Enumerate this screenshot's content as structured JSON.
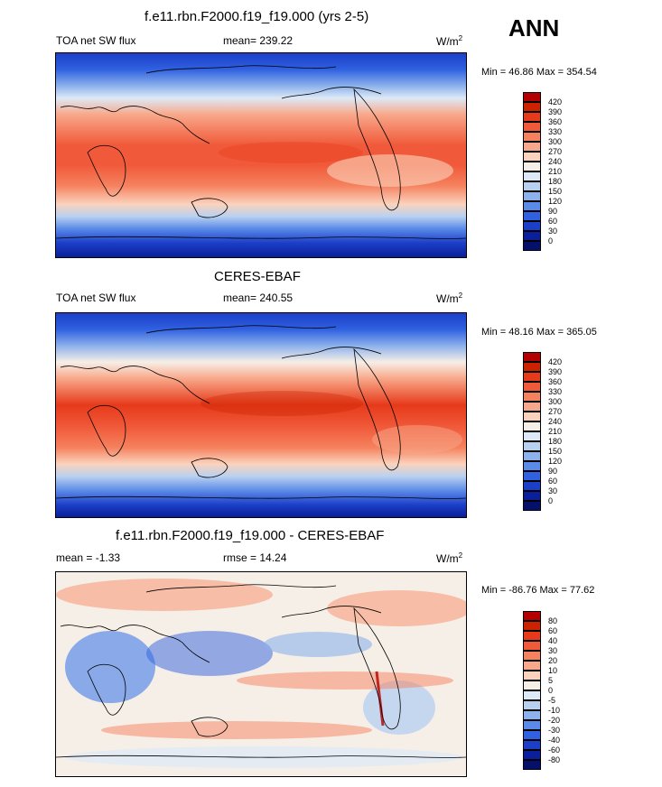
{
  "season": "ANN",
  "panels": [
    {
      "title": "f.e11.rbn.F2000.f19_f19.000 (yrs 2-5)",
      "left_label": "TOA net SW flux",
      "center_label": "mean= 239.22",
      "units": "W/m",
      "units_sup": "2",
      "minmax": "Min =  46.86 Max = 354.54",
      "levels": [
        "420",
        "390",
        "360",
        "330",
        "300",
        "270",
        "240",
        "210",
        "180",
        "150",
        "120",
        "90",
        "60",
        "30",
        "0"
      ],
      "colors": [
        "#b30000",
        "#cc2200",
        "#e63a1a",
        "#f05a3a",
        "#f5825f",
        "#f8a88a",
        "#fbd3bd",
        "#f6efe7",
        "#dde9f6",
        "#b9d1f0",
        "#8cb1ec",
        "#5b8be8",
        "#3061e0",
        "#1c3fc8",
        "#0a1f99",
        "#05106a"
      ]
    },
    {
      "title": "CERES-EBAF",
      "left_label": "TOA net SW flux",
      "center_label": "mean= 240.55",
      "units": "W/m",
      "units_sup": "2",
      "minmax": "Min =  48.16 Max = 365.05",
      "levels": [
        "420",
        "390",
        "360",
        "330",
        "300",
        "270",
        "240",
        "210",
        "180",
        "150",
        "120",
        "90",
        "60",
        "30",
        "0"
      ],
      "colors": [
        "#b30000",
        "#cc2200",
        "#e63a1a",
        "#f05a3a",
        "#f5825f",
        "#f8a88a",
        "#fbd3bd",
        "#f6efe7",
        "#dde9f6",
        "#b9d1f0",
        "#8cb1ec",
        "#5b8be8",
        "#3061e0",
        "#1c3fc8",
        "#0a1f99",
        "#05106a"
      ]
    },
    {
      "title": "f.e11.rbn.F2000.f19_f19.000 - CERES-EBAF",
      "left_label": "mean =  -1.33",
      "center_label": "rmse =  14.24",
      "units": "W/m",
      "units_sup": "2",
      "minmax": "Min = -86.76 Max =  77.62",
      "levels": [
        "80",
        "60",
        "40",
        "30",
        "20",
        "10",
        "5",
        "0",
        "-5",
        "-10",
        "-20",
        "-30",
        "-40",
        "-60",
        "-80"
      ],
      "colors": [
        "#b30000",
        "#cc2200",
        "#e63a1a",
        "#f05a3a",
        "#f5825f",
        "#f8a88a",
        "#fbd3bd",
        "#f6efe7",
        "#dde9f6",
        "#b9d1f0",
        "#8cb1ec",
        "#5b8be8",
        "#3061e0",
        "#1c3fc8",
        "#0a1f99",
        "#05106a"
      ]
    }
  ],
  "chart_data": [
    {
      "type": "heatmap",
      "title": "f.e11.rbn.F2000.f19_f19.000 (yrs 2-5)",
      "variable": "TOA net SW flux",
      "mean": 239.22,
      "min": 46.86,
      "max": 354.54,
      "units": "W/m2",
      "levels": [
        0,
        30,
        60,
        90,
        120,
        150,
        180,
        210,
        240,
        270,
        300,
        330,
        360,
        390,
        420
      ]
    },
    {
      "type": "heatmap",
      "title": "CERES-EBAF",
      "variable": "TOA net SW flux",
      "mean": 240.55,
      "min": 48.16,
      "max": 365.05,
      "units": "W/m2",
      "levels": [
        0,
        30,
        60,
        90,
        120,
        150,
        180,
        210,
        240,
        270,
        300,
        330,
        360,
        390,
        420
      ]
    },
    {
      "type": "heatmap",
      "title": "f.e11.rbn.F2000.f19_f19.000 - CERES-EBAF",
      "mean": -1.33,
      "rmse": 14.24,
      "min": -86.76,
      "max": 77.62,
      "units": "W/m2",
      "levels": [
        -80,
        -60,
        -40,
        -30,
        -20,
        -10,
        -5,
        0,
        5,
        10,
        20,
        30,
        40,
        60,
        80
      ]
    }
  ]
}
